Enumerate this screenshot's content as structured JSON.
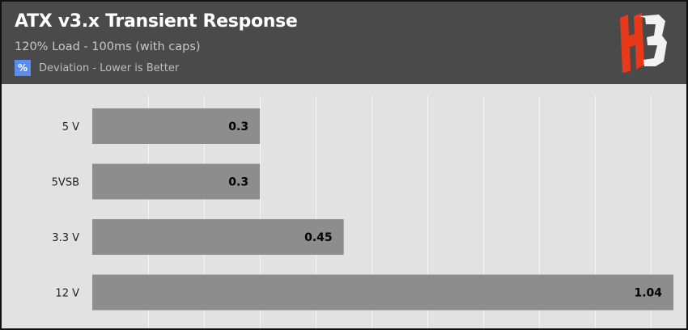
{
  "header": {
    "title": "ATX v3.x Transient Response",
    "subtitle": "120% Load - 100ms (with caps)",
    "legend_badge": "%",
    "legend_text": "Deviation - Lower is Better",
    "logo_icon": "hb-logo-icon"
  },
  "colors": {
    "header_bg": "#4a4a4a",
    "plot_bg": "#e2e2e2",
    "bar": "#8d8d8d",
    "legend_badge": "#5b8def",
    "logo_red": "#e8391a",
    "logo_white": "#f2f2f2"
  },
  "chart_data": {
    "type": "bar",
    "orientation": "horizontal",
    "categories": [
      "5 V",
      "5VSB",
      "3.3 V",
      "12 V"
    ],
    "values": [
      0.3,
      0.3,
      0.45,
      1.04
    ],
    "value_labels": [
      "0.3",
      "0.3",
      "0.45",
      "1.04"
    ],
    "series": [
      {
        "name": "Deviation - Lower is Better",
        "values": [
          0.3,
          0.3,
          0.45,
          1.04
        ]
      }
    ],
    "xlim": [
      0,
      1.04
    ],
    "gridlines": "vertical",
    "grid_step": 0.1
  }
}
